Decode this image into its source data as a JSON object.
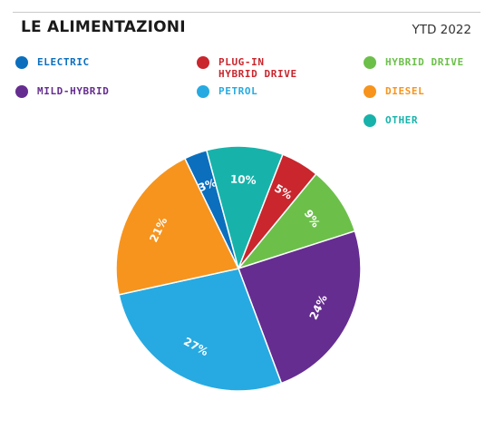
{
  "header": {
    "title": "LE ALIMENTAZIONI",
    "period": "YTD 2022"
  },
  "chart_data": {
    "type": "pie",
    "title": "LE ALIMENTAZIONI",
    "legend_position": "top",
    "slices": [
      {
        "name": "ELECTRIC",
        "value": 3,
        "label": "3%",
        "color": "#0b6fbe"
      },
      {
        "name": "OTHER",
        "value": 10,
        "label": "10%",
        "color": "#17b3ab"
      },
      {
        "name": "PLUG-IN\nHYBRID DRIVE",
        "value": 5,
        "label": "5%",
        "color": "#c9262d"
      },
      {
        "name": "HYBRID DRIVE",
        "value": 9,
        "label": "9%",
        "color": "#6cc04a"
      },
      {
        "name": "MILD-HYBRID",
        "value": 24,
        "label": "24%",
        "color": "#652d90"
      },
      {
        "name": "PETROL",
        "value": 27,
        "label": "27%",
        "color": "#27aae1"
      },
      {
        "name": "DIESEL",
        "value": 21,
        "label": "21%",
        "color": "#f7941d"
      }
    ]
  }
}
